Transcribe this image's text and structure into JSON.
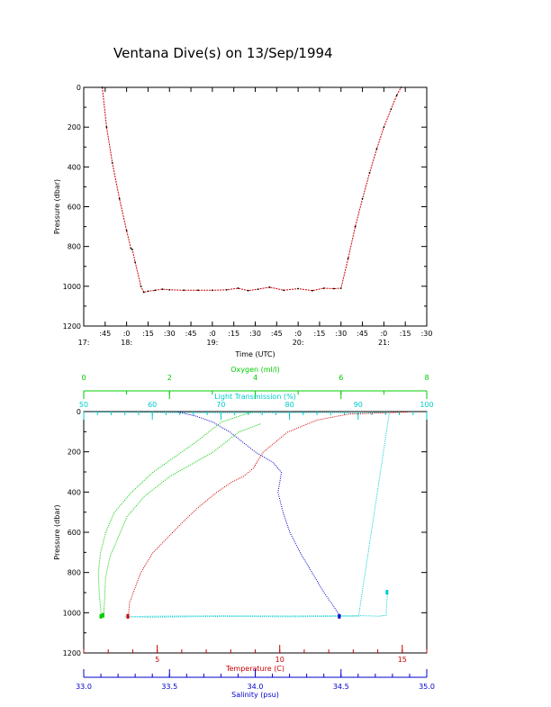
{
  "title": "Ventana Dive(s) on 13/Sep/1994",
  "chart_data": [
    {
      "type": "line",
      "xlabel": "Time (UTC)",
      "ylabel": "Pressure (dbar)",
      "color": "#cc0000",
      "x_unit": "minutes since 17:00 UTC",
      "xlim": [
        30,
        270
      ],
      "ylim": [
        1200,
        0
      ],
      "yticks": [
        0,
        200,
        400,
        600,
        800,
        1000,
        1200
      ],
      "xticks_minor": [
        {
          "v": 45,
          "label": ":45"
        },
        {
          "v": 60,
          "label": ":0"
        },
        {
          "v": 75,
          "label": ":15"
        },
        {
          "v": 90,
          "label": ":30"
        },
        {
          "v": 105,
          "label": ":45"
        },
        {
          "v": 120,
          "label": ":0"
        },
        {
          "v": 135,
          "label": ":15"
        },
        {
          "v": 150,
          "label": ":30"
        },
        {
          "v": 165,
          "label": ":45"
        },
        {
          "v": 180,
          "label": ":0"
        },
        {
          "v": 195,
          "label": ":15"
        },
        {
          "v": 210,
          "label": ":30"
        },
        {
          "v": 225,
          "label": ":45"
        },
        {
          "v": 240,
          "label": ":0"
        },
        {
          "v": 255,
          "label": ":15"
        },
        {
          "v": 270,
          "label": ":30"
        }
      ],
      "xticks_hours": [
        {
          "v": 30,
          "label": "17:"
        },
        {
          "v": 60,
          "label": "18:"
        },
        {
          "v": 120,
          "label": "19:"
        },
        {
          "v": 180,
          "label": "20:"
        },
        {
          "v": 240,
          "label": "21:"
        }
      ],
      "series": [
        {
          "name": "Pressure",
          "x": [
            43,
            46,
            50,
            55,
            60,
            63,
            64,
            66,
            70,
            72,
            75,
            80,
            85,
            90,
            100,
            110,
            120,
            130,
            138,
            145,
            152,
            160,
            170,
            180,
            190,
            198,
            205,
            210,
            215,
            220,
            225,
            230,
            235,
            240,
            245,
            249,
            252
          ],
          "y": [
            0,
            200,
            380,
            560,
            720,
            810,
            815,
            880,
            1000,
            1030,
            1025,
            1020,
            1015,
            1018,
            1020,
            1020,
            1020,
            1018,
            1010,
            1022,
            1015,
            1005,
            1020,
            1012,
            1022,
            1010,
            1012,
            1010,
            860,
            700,
            560,
            430,
            310,
            200,
            110,
            40,
            0
          ]
        }
      ]
    },
    {
      "type": "scatter",
      "ylabel": "Pressure (dbar)",
      "ylim": [
        1200,
        0
      ],
      "yticks": [
        0,
        200,
        400,
        600,
        800,
        1000,
        1200
      ],
      "axes": {
        "oxygen": {
          "label": "Oxygen (ml/l)",
          "color": "#00cc00",
          "range": [
            0,
            8
          ],
          "ticks": [
            0,
            2,
            4,
            6,
            8
          ]
        },
        "transmission": {
          "label": "Light Transmission (%)",
          "color": "#00cccc",
          "range": [
            50,
            100
          ],
          "ticks": [
            50,
            60,
            70,
            80,
            90,
            100
          ]
        },
        "temperature": {
          "label": "Temperature (C)",
          "color": "#cc0000",
          "range": [
            2,
            16
          ],
          "ticks": [
            5,
            10,
            15
          ]
        },
        "salinity": {
          "label": "Salinity (psu)",
          "color": "#0000cc",
          "range": [
            33.0,
            35.0
          ],
          "ticks": [
            "33.0",
            "33.5",
            "34.0",
            "34.5",
            "35.0"
          ]
        }
      },
      "series": [
        {
          "name": "Oxygen",
          "axis": "oxygen",
          "color": "#00cc00",
          "x": [
            3.9,
            3.2,
            2.6,
            1.6,
            1.1,
            0.7,
            0.5,
            0.38,
            0.33,
            0.35,
            0.4
          ],
          "y": [
            0,
            50,
            150,
            300,
            400,
            500,
            600,
            700,
            800,
            900,
            1020
          ]
        },
        {
          "name": "Oxygen",
          "axis": "oxygen",
          "color": "#00cc00",
          "x": [
            4.1,
            3.6,
            3.0,
            2.0,
            1.4,
            1.0,
            0.8,
            0.6,
            0.5,
            0.48,
            0.45
          ],
          "y": [
            60,
            100,
            200,
            320,
            420,
            520,
            620,
            720,
            820,
            920,
            1015
          ]
        },
        {
          "name": "Light Transmission",
          "axis": "transmission",
          "color": "#00cccc",
          "x": [
            51,
            60,
            70,
            80,
            85,
            88,
            90,
            92,
            94.5,
            90,
            80,
            70,
            60,
            56,
            60,
            70,
            80,
            90,
            93,
            94,
            94.2
          ],
          "y": [
            0,
            2,
            4,
            3,
            2,
            4,
            6,
            3,
            0,
            1015,
            1018,
            1016,
            1020,
            1018,
            1015,
            1013,
            1014,
            1012,
            1015,
            1010,
            900
          ]
        },
        {
          "name": "Temperature",
          "axis": "temperature",
          "color": "#cc0000",
          "x": [
            15.2,
            12.8,
            11.5,
            10.3,
            9.3,
            8.9,
            8.5,
            8.0,
            7.4,
            6.6,
            6.0,
            5.6,
            4.8,
            4.3,
            4.0,
            3.85,
            3.8
          ],
          "y": [
            0,
            10,
            40,
            100,
            200,
            280,
            320,
            350,
            400,
            480,
            550,
            600,
            700,
            800,
            900,
            950,
            1020
          ]
        },
        {
          "name": "Salinity",
          "axis": "salinity",
          "color": "#0000cc",
          "x": [
            33.55,
            33.65,
            33.75,
            33.85,
            34.0,
            34.1,
            34.15,
            34.13,
            34.16,
            34.2,
            34.26,
            34.33,
            34.4,
            34.45,
            34.48,
            34.49
          ],
          "y": [
            0,
            20,
            50,
            100,
            200,
            250,
            300,
            400,
            500,
            600,
            700,
            800,
            900,
            960,
            1000,
            1020
          ]
        }
      ]
    }
  ]
}
